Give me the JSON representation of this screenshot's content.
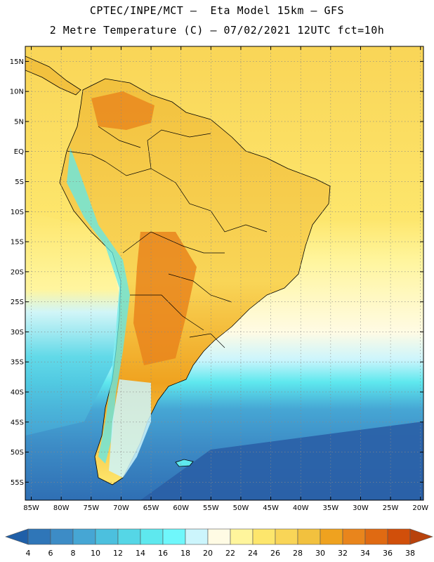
{
  "header": {
    "line1": "CPTEC/INPE/MCT –  Eta Model 15km – GFS",
    "line2": "2 Metre Temperature (C) – 07/02/2021 12UTC fct=10h"
  },
  "map": {
    "lat_labels": [
      "15N",
      "10N",
      "5N",
      "EQ",
      "5S",
      "10S",
      "15S",
      "20S",
      "25S",
      "30S",
      "35S",
      "40S",
      "45S",
      "50S",
      "55S"
    ],
    "lat_values": [
      15,
      10,
      5,
      0,
      -5,
      -10,
      -15,
      -20,
      -25,
      -30,
      -35,
      -40,
      -45,
      -50,
      -55
    ],
    "lon_labels": [
      "85W",
      "80W",
      "75W",
      "70W",
      "65W",
      "60W",
      "55W",
      "50W",
      "45W",
      "40W",
      "35W",
      "30W",
      "25W",
      "20W"
    ],
    "lon_values": [
      -85,
      -80,
      -75,
      -70,
      -65,
      -60,
      -55,
      -50,
      -45,
      -40,
      -35,
      -30,
      -25,
      -20
    ],
    "lon_range": [
      -86,
      -19.5
    ],
    "lat_range": [
      -58,
      17.5
    ],
    "grid": true
  },
  "colorbar": {
    "labels": [
      "4",
      "6",
      "8",
      "10",
      "12",
      "14",
      "16",
      "18",
      "20",
      "22",
      "24",
      "26",
      "28",
      "30",
      "32",
      "34",
      "36",
      "38"
    ],
    "colors": [
      "#1f5fa8",
      "#2f76b8",
      "#3d8cc6",
      "#46a6d4",
      "#4cc0de",
      "#55d6e6",
      "#5ee8ee",
      "#6ff7fb",
      "#ccf5fc",
      "#fffbe4",
      "#fff59c",
      "#fde66c",
      "#f9d557",
      "#f2c13e",
      "#efa21f",
      "#e9851c",
      "#e06a12",
      "#d14f0a",
      "#b8420c"
    ]
  }
}
